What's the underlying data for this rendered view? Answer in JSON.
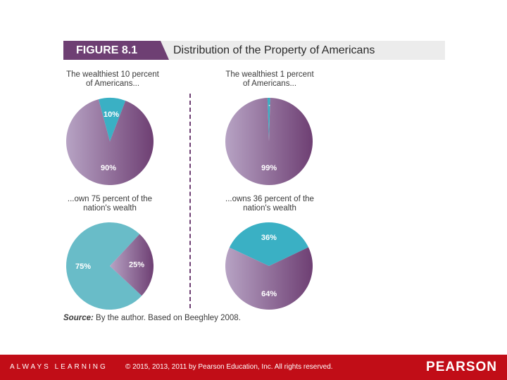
{
  "header": {
    "figure_label": "FIGURE 8.1",
    "title": "Distribution of the Property of Americans"
  },
  "chart_data": [
    {
      "type": "pie",
      "title": "The wealthiest 10 percent of Americans...",
      "caption_lines": [
        "The wealthiest 10 percent",
        "of Americans..."
      ],
      "slices": [
        {
          "label": "10%",
          "value": 10,
          "color": "#3ab0c4"
        },
        {
          "label": "90%",
          "value": 90,
          "color": "#8b5d93"
        }
      ]
    },
    {
      "type": "pie",
      "title": "The wealthiest 1 percent of Americans...",
      "caption_lines": [
        "The wealthiest 1 percent",
        "of Americans..."
      ],
      "slices": [
        {
          "label": "1%",
          "value": 1,
          "color": "#3ab0c4"
        },
        {
          "label": "99%",
          "value": 99,
          "color": "#8b5d93"
        }
      ]
    },
    {
      "type": "pie",
      "title": "...own 75 percent of the nation's wealth",
      "caption_lines": [
        "...own 75 percent of the",
        "nation's wealth"
      ],
      "slices": [
        {
          "label": "75%",
          "value": 75,
          "color": "#69bcc8"
        },
        {
          "label": "25%",
          "value": 25,
          "color": "#8b5d93"
        }
      ]
    },
    {
      "type": "pie",
      "title": "...owns 36 percent of the nation's wealth",
      "caption_lines": [
        "...owns 36 percent of the",
        "nation's wealth"
      ],
      "slices": [
        {
          "label": "36%",
          "value": 36,
          "color": "#3ab0c4"
        },
        {
          "label": "64%",
          "value": 64,
          "color": "#8b5d93"
        }
      ]
    }
  ],
  "source": {
    "prefix": "Source:",
    "text": " By the author. Based on Beeghley 2008."
  },
  "footer": {
    "tagline": "ALWAYS LEARNING",
    "copyright": "© 2015, 2013, 2011 by Pearson Education, Inc. All rights reserved.",
    "brand": "PEARSON"
  },
  "colors": {
    "purple": "#8b5d93",
    "purple_dark": "#6e3f73",
    "teal": "#3ab0c4",
    "footer_red": "#c10d17"
  }
}
